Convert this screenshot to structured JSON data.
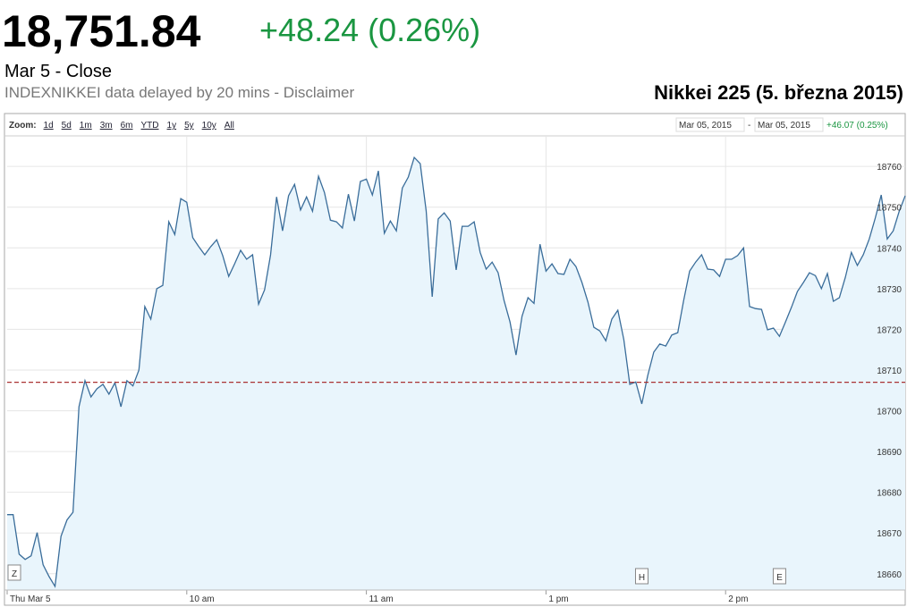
{
  "header": {
    "price": "18,751.84",
    "change": "+48.24 (0.26%)",
    "status": "Mar 5 - Close",
    "source": "INDEXNIKKEI data delayed by 20 mins - Disclaimer",
    "caption": "Nikkei 225 (5. března 2015)"
  },
  "toolbar": {
    "zoom_label": "Zoom:",
    "zoom_options": [
      "1d",
      "5d",
      "1m",
      "3m",
      "6m",
      "YTD",
      "1y",
      "5y",
      "10y",
      "All"
    ],
    "range_from": "Mar 05, 2015",
    "range_separator": "-",
    "range_to": "Mar 05, 2015",
    "range_change": "+46.07 (0.25%)",
    "zoom_reset": "Z"
  },
  "chart_data": {
    "type": "line",
    "x": [
      0,
      2,
      4,
      6,
      8,
      10,
      12,
      14,
      16,
      18,
      20,
      22,
      24,
      26,
      28,
      30,
      32,
      34,
      36,
      38,
      40,
      42,
      44,
      46,
      48,
      50,
      52,
      54,
      56,
      58,
      60,
      62,
      64,
      66,
      68,
      70,
      72,
      74,
      76,
      78,
      80,
      82,
      84,
      86,
      88,
      90,
      92,
      94,
      96,
      98,
      100,
      102,
      104,
      106,
      108,
      110,
      112,
      114,
      116,
      118,
      120,
      122,
      124,
      126,
      128,
      130,
      132,
      134,
      136,
      138,
      140,
      142,
      144,
      146,
      148,
      150,
      152,
      154,
      156,
      158,
      160,
      162,
      164,
      166,
      168,
      170,
      172,
      174,
      176,
      178,
      180,
      182,
      184,
      186,
      188,
      190,
      192,
      194,
      196,
      198,
      200,
      202,
      204,
      206,
      208,
      210,
      212,
      214,
      216,
      218,
      220,
      222,
      224,
      226,
      228,
      230,
      232,
      234,
      236,
      238,
      240,
      242,
      244,
      246,
      248,
      250,
      252,
      254,
      256,
      258,
      260,
      262,
      264,
      266,
      268,
      270,
      272,
      274,
      276,
      278,
      280,
      282,
      284,
      286,
      288,
      290,
      292,
      294,
      296,
      298,
      300
    ],
    "values": [
      18674.5,
      18674.5,
      18664.8,
      18663.5,
      18664.4,
      18670.1,
      18662.2,
      18659.3,
      18656.9,
      18669.2,
      18673.2,
      18675.1,
      18701.0,
      18707.4,
      18703.4,
      18705.4,
      18706.5,
      18704.1,
      18706.9,
      18701.0,
      18707.4,
      18706.1,
      18710.0,
      18725.6,
      18722.5,
      18730.0,
      18730.8,
      18746.4,
      18743.3,
      18752.1,
      18751.2,
      18742.5,
      18740.3,
      18738.3,
      18740.3,
      18742.0,
      18738.1,
      18733.0,
      18736.1,
      18739.4,
      18737.2,
      18738.3,
      18726.2,
      18729.7,
      18738.3,
      18752.5,
      18744.2,
      18752.8,
      18755.6,
      18749.3,
      18752.5,
      18749.0,
      18757.6,
      18753.6,
      18746.8,
      18746.4,
      18744.9,
      18753.2,
      18746.6,
      18756.3,
      18756.9,
      18753.0,
      18758.9,
      18743.6,
      18746.6,
      18744.2,
      18754.7,
      18757.4,
      18762.2,
      18760.7,
      18749.0,
      18728.0,
      18747.1,
      18748.6,
      18746.6,
      18734.6,
      18745.3,
      18745.3,
      18746.4,
      18738.9,
      18734.8,
      18736.5,
      18733.9,
      18727.1,
      18721.8,
      18713.7,
      18723.2,
      18727.8,
      18726.4,
      18740.9,
      18734.3,
      18736.1,
      18733.7,
      18733.5,
      18737.2,
      18735.4,
      18731.5,
      18726.7,
      18720.5,
      18719.6,
      18717.2,
      18722.5,
      18724.7,
      18717.5,
      18706.5,
      18707.1,
      18701.7,
      18708.7,
      18714.4,
      18716.4,
      18715.9,
      18718.6,
      18719.2,
      18727.1,
      18734.3,
      18736.5,
      18738.3,
      18734.8,
      18734.6,
      18733.0,
      18737.2,
      18737.2,
      18738.1,
      18740.0,
      18725.6,
      18725.1,
      18724.9,
      18719.9,
      18720.3,
      18718.3,
      18721.8,
      18725.4,
      18729.3,
      18731.5,
      18733.9,
      18733.2,
      18730.0,
      18733.7,
      18726.9,
      18727.8,
      18732.8,
      18738.9,
      18735.7,
      18738.3,
      18742.2,
      18747.3,
      18753.0,
      18742.2,
      18744.2,
      18749.0,
      18752.8
    ],
    "color": "#3a6d9a",
    "fill_color": "#e9f5fc",
    "xlim": [
      0,
      300
    ],
    "xticks": [
      {
        "value": 0,
        "label": "Thu Mar 5"
      },
      {
        "value": 60,
        "label": "10 am"
      },
      {
        "value": 120,
        "label": "11 am"
      },
      {
        "value": 180,
        "label": "1 pm"
      },
      {
        "value": 240,
        "label": "2 pm"
      }
    ],
    "ylim": [
      18656,
      18767.5
    ],
    "yticks": [
      18660,
      18670,
      18680,
      18690,
      18700,
      18710,
      18720,
      18730,
      18740,
      18750,
      18760
    ],
    "reference_line": 18707,
    "reference_color": "#a33",
    "flags": [
      {
        "label": "H",
        "x": 212
      },
      {
        "label": "E",
        "x": 258
      }
    ],
    "grid": true
  }
}
